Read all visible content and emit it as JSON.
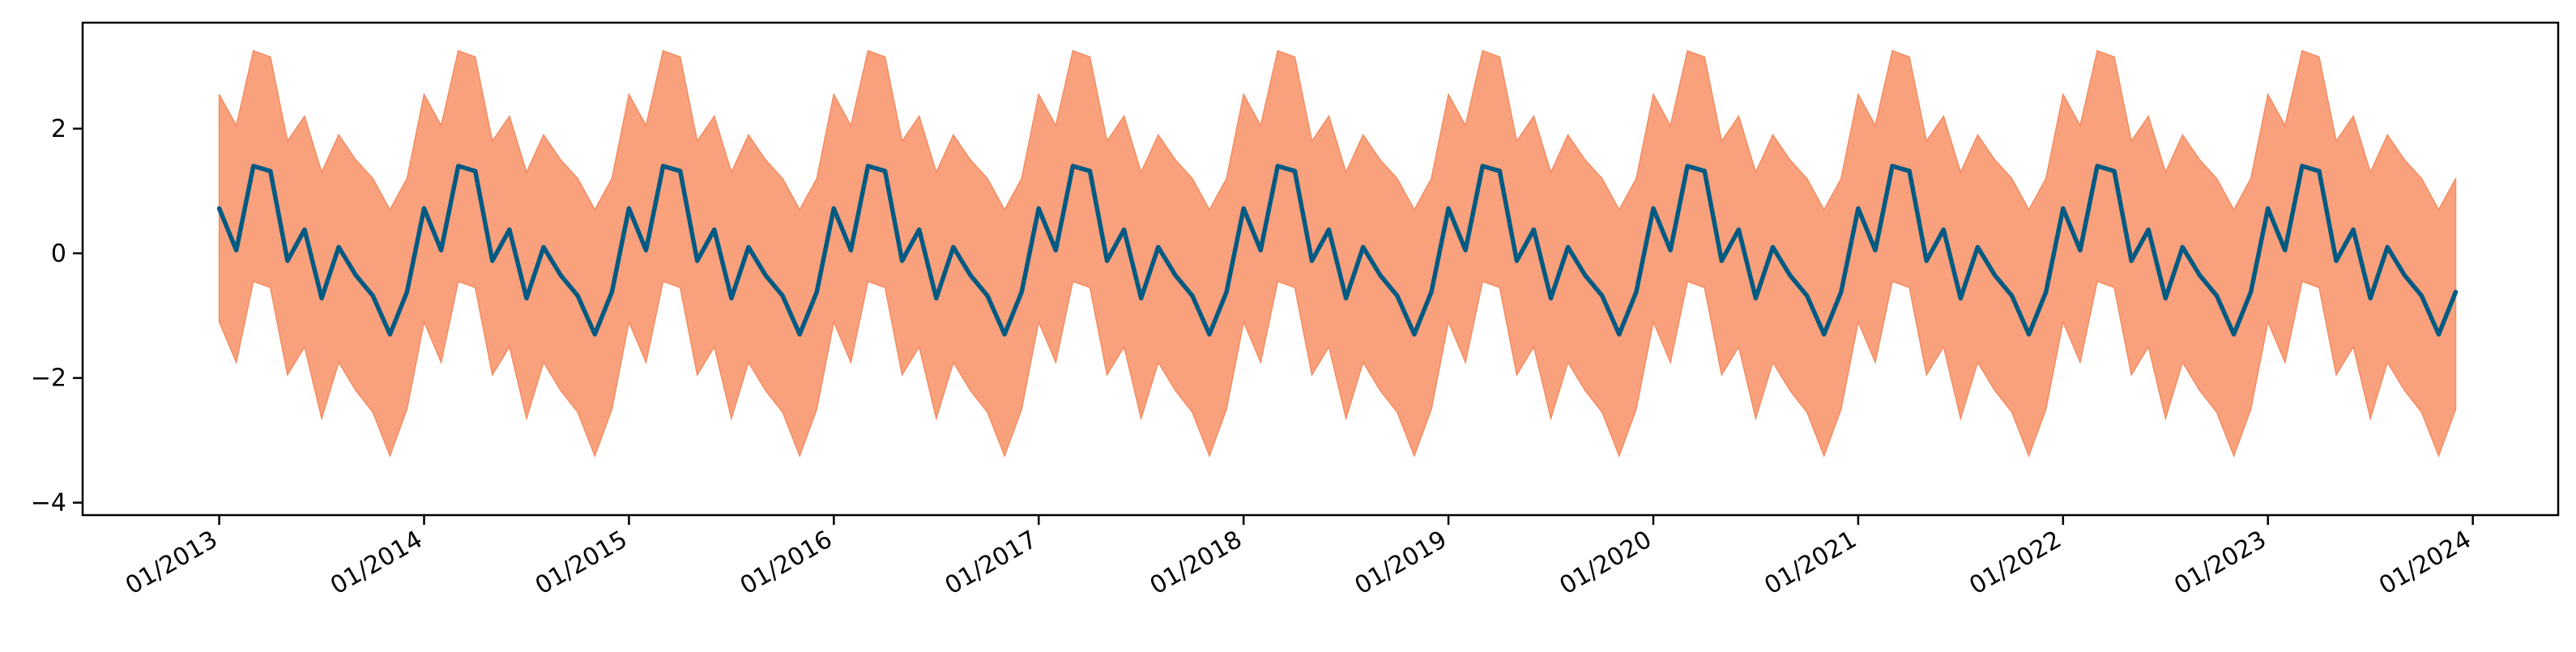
{
  "chart_data": {
    "type": "line",
    "title": "",
    "xlabel": "",
    "ylabel": "",
    "x_start": "2013-01",
    "x_frequency": "monthly",
    "xlim": [
      "2012-05",
      "2024-06"
    ],
    "ylim": [
      -4.2,
      3.7
    ],
    "grid": false,
    "x_ticks": [
      "01/2013",
      "01/2014",
      "01/2015",
      "01/2016",
      "01/2017",
      "01/2018",
      "01/2019",
      "01/2020",
      "01/2021",
      "01/2022",
      "01/2023",
      "01/2024"
    ],
    "y_ticks": [
      2,
      0,
      -2,
      -4
    ],
    "y_tick_labels": [
      "2",
      "0",
      "−2",
      "−4"
    ],
    "colors": {
      "line": "#005a82",
      "band": "#f9a07c",
      "band_edge": "#f38d62"
    },
    "series": [
      {
        "kind": "line",
        "mean": [
          0.72,
          0.05,
          1.4,
          1.32,
          -0.12,
          0.38,
          -0.72,
          0.1,
          -0.35,
          -0.68,
          -1.3,
          -0.62,
          0.72,
          0.05,
          1.4,
          1.32,
          -0.12,
          0.38,
          -0.72,
          0.1,
          -0.35,
          -0.68,
          -1.3,
          -0.62,
          0.72,
          0.05,
          1.4,
          1.32,
          -0.12,
          0.38,
          -0.72,
          0.1,
          -0.35,
          -0.68,
          -1.3,
          -0.62,
          0.72,
          0.05,
          1.4,
          1.32,
          -0.12,
          0.38,
          -0.72,
          0.1,
          -0.35,
          -0.68,
          -1.3,
          -0.62,
          0.72,
          0.05,
          1.4,
          1.32,
          -0.12,
          0.38,
          -0.72,
          0.1,
          -0.35,
          -0.68,
          -1.3,
          -0.62,
          0.72,
          0.05,
          1.4,
          1.32,
          -0.12,
          0.38,
          -0.72,
          0.1,
          -0.35,
          -0.68,
          -1.3,
          -0.62,
          0.72,
          0.05,
          1.4,
          1.32,
          -0.12,
          0.38,
          -0.72,
          0.1,
          -0.35,
          -0.68,
          -1.3,
          -0.62,
          0.72,
          0.05,
          1.4,
          1.32,
          -0.12,
          0.38,
          -0.72,
          0.1,
          -0.35,
          -0.68,
          -1.3,
          -0.62,
          0.72,
          0.05,
          1.4,
          1.32,
          -0.12,
          0.38,
          -0.72,
          0.1,
          -0.35,
          -0.68,
          -1.3,
          -0.62,
          0.72,
          0.05,
          1.4,
          1.32,
          -0.12,
          0.38,
          -0.72,
          0.1,
          -0.35,
          -0.68,
          -1.3,
          -0.62,
          0.72,
          0.05,
          1.4,
          1.32,
          -0.12,
          0.38,
          -0.72,
          0.1,
          -0.35,
          -0.68,
          -1.3,
          -0.62
        ],
        "upper": [
          2.55,
          2.05,
          3.25,
          3.15,
          1.8,
          2.2,
          1.3,
          1.9,
          1.5,
          1.2,
          0.7,
          1.2,
          2.55,
          2.05,
          3.25,
          3.15,
          1.8,
          2.2,
          1.3,
          1.9,
          1.5,
          1.2,
          0.7,
          1.2,
          2.55,
          2.05,
          3.25,
          3.15,
          1.8,
          2.2,
          1.3,
          1.9,
          1.5,
          1.2,
          0.7,
          1.2,
          2.55,
          2.05,
          3.25,
          3.15,
          1.8,
          2.2,
          1.3,
          1.9,
          1.5,
          1.2,
          0.7,
          1.2,
          2.55,
          2.05,
          3.25,
          3.15,
          1.8,
          2.2,
          1.3,
          1.9,
          1.5,
          1.2,
          0.7,
          1.2,
          2.55,
          2.05,
          3.25,
          3.15,
          1.8,
          2.2,
          1.3,
          1.9,
          1.5,
          1.2,
          0.7,
          1.2,
          2.55,
          2.05,
          3.25,
          3.15,
          1.8,
          2.2,
          1.3,
          1.9,
          1.5,
          1.2,
          0.7,
          1.2,
          2.55,
          2.05,
          3.25,
          3.15,
          1.8,
          2.2,
          1.3,
          1.9,
          1.5,
          1.2,
          0.7,
          1.2,
          2.55,
          2.05,
          3.25,
          3.15,
          1.8,
          2.2,
          1.3,
          1.9,
          1.5,
          1.2,
          0.7,
          1.2,
          2.55,
          2.05,
          3.25,
          3.15,
          1.8,
          2.2,
          1.3,
          1.9,
          1.5,
          1.2,
          0.7,
          1.2,
          2.55,
          2.05,
          3.25,
          3.15,
          1.8,
          2.2,
          1.3,
          1.9,
          1.5,
          1.2,
          0.7,
          1.2
        ],
        "lower": [
          -1.1,
          -1.75,
          -0.45,
          -0.55,
          -1.95,
          -1.5,
          -2.65,
          -1.75,
          -2.2,
          -2.55,
          -3.25,
          -2.5,
          -1.1,
          -1.75,
          -0.45,
          -0.55,
          -1.95,
          -1.5,
          -2.65,
          -1.75,
          -2.2,
          -2.55,
          -3.25,
          -2.5,
          -1.1,
          -1.75,
          -0.45,
          -0.55,
          -1.95,
          -1.5,
          -2.65,
          -1.75,
          -2.2,
          -2.55,
          -3.25,
          -2.5,
          -1.1,
          -1.75,
          -0.45,
          -0.55,
          -1.95,
          -1.5,
          -2.65,
          -1.75,
          -2.2,
          -2.55,
          -3.25,
          -2.5,
          -1.1,
          -1.75,
          -0.45,
          -0.55,
          -1.95,
          -1.5,
          -2.65,
          -1.75,
          -2.2,
          -2.55,
          -3.25,
          -2.5,
          -1.1,
          -1.75,
          -0.45,
          -0.55,
          -1.95,
          -1.5,
          -2.65,
          -1.75,
          -2.2,
          -2.55,
          -3.25,
          -2.5,
          -1.1,
          -1.75,
          -0.45,
          -0.55,
          -1.95,
          -1.5,
          -2.65,
          -1.75,
          -2.2,
          -2.55,
          -3.25,
          -2.5,
          -1.1,
          -1.75,
          -0.45,
          -0.55,
          -1.95,
          -1.5,
          -2.65,
          -1.75,
          -2.2,
          -2.55,
          -3.25,
          -2.5,
          -1.1,
          -1.75,
          -0.45,
          -0.55,
          -1.95,
          -1.5,
          -2.65,
          -1.75,
          -2.2,
          -2.55,
          -3.25,
          -2.5,
          -1.1,
          -1.75,
          -0.45,
          -0.55,
          -1.95,
          -1.5,
          -2.65,
          -1.75,
          -2.2,
          -2.55,
          -3.25,
          -2.5,
          -1.1,
          -1.75,
          -0.45,
          -0.55,
          -1.95,
          -1.5,
          -2.65,
          -1.75,
          -2.2,
          -2.55,
          -3.25,
          -2.5
        ]
      }
    ]
  }
}
